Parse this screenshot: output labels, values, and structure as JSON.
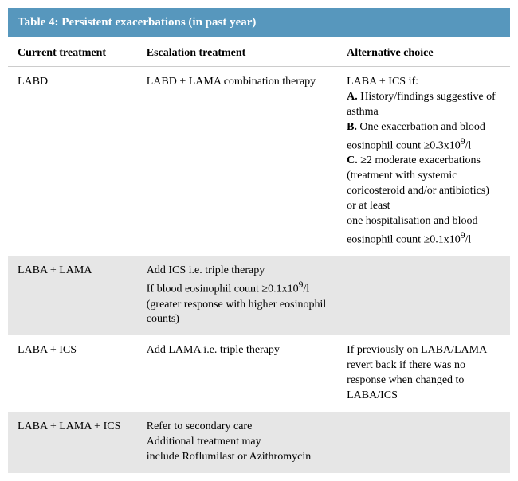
{
  "table": {
    "title": "Table 4: Persistent exacerbations (in past year)",
    "columns": [
      "Current treatment",
      "Escalation treatment",
      "Alternative choice"
    ],
    "colors": {
      "header_bg": "#5797bd",
      "header_text": "#ffffff",
      "row_alt_bg": "#e6e6e6",
      "row_bg": "#ffffff",
      "text": "#000000"
    },
    "font_sizes": {
      "title": 15,
      "header": 14,
      "cell": 14
    },
    "rows": [
      {
        "current": "LABD",
        "escalation": "LABD + LAMA combination therapy",
        "alternative_html": "LABA + ICS if:<br><b>A.</b> History/findings suggestive of asthma<br><b>B.</b> One exacerbation and blood eosinophil count ≥0.3x10<sup>9</sup>/l<br><b>C.</b> ≥2 moderate exacerbations (treatment with systemic coricosteroid and/or antibiotics) or at least<br>one hospitalisation and blood eosinophil count ≥0.1x10<sup>9</sup>/l",
        "bg": "row-white"
      },
      {
        "current": "LABA + LAMA",
        "escalation_html": "Add ICS i.e. triple therapy<br>If blood eosinophil count ≥0.1x10<sup>9</sup>/l<br>(greater response with higher eosinophil counts)",
        "alternative": "",
        "bg": "row-grey"
      },
      {
        "current": "LABA + ICS",
        "escalation": "Add LAMA i.e. triple therapy",
        "alternative": "If previously on LABA/LAMA revert back if there was no response when changed to LABA/ICS",
        "bg": "row-white"
      },
      {
        "current": "LABA + LAMA + ICS",
        "escalation_html": "Refer to secondary care<br>Additional treatment may<br>include Roflumilast or Azithromycin",
        "alternative": "",
        "bg": "row-grey"
      }
    ]
  }
}
